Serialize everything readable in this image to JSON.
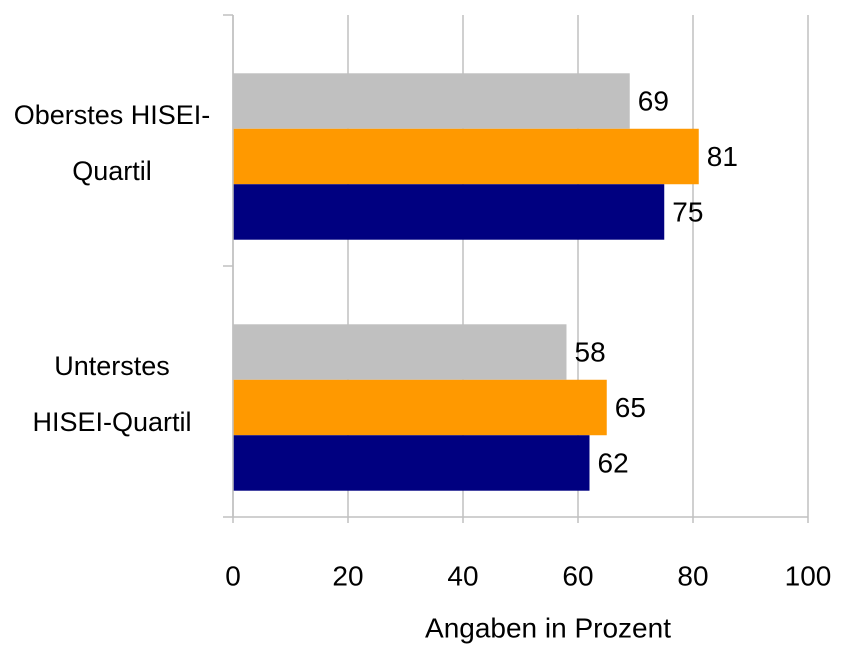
{
  "chart_data": {
    "type": "bar",
    "orientation": "horizontal",
    "categories": [
      "Oberstes HISEI-Quartil",
      "Unterstes HISEI-Quartil"
    ],
    "series": [
      {
        "color": "#c0c0c0",
        "values": [
          69,
          58
        ]
      },
      {
        "color": "#ff9900",
        "values": [
          81,
          65
        ]
      },
      {
        "color": "#000080",
        "values": [
          75,
          62
        ]
      }
    ],
    "xlabel": "Angaben in Prozent",
    "xlim": [
      0,
      100
    ],
    "xticks": [
      0,
      20,
      40,
      60,
      80,
      100
    ],
    "grid": true
  }
}
